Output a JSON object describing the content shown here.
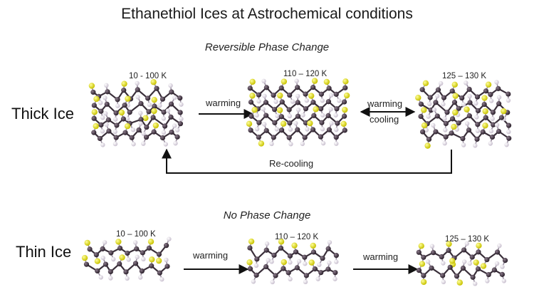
{
  "title": "Ethanethiol Ices at Astrochemical conditions",
  "thick": {
    "subtitle": "Reversible Phase Change",
    "label": "Thick Ice",
    "temps": [
      "10 - 100 K",
      "110 – 120 K",
      "125 – 130 K"
    ],
    "arrow1_label": "warming",
    "arrow2_top": "warming",
    "arrow2_bottom": "cooling",
    "recooling_label": "Re-cooling"
  },
  "thin": {
    "subtitle": "No Phase Change",
    "label": "Thin Ice",
    "temps": [
      "10 – 100 K",
      "110 – 120 K",
      "125 – 130 K"
    ],
    "arrow1_label": "warming",
    "arrow2_label": "warming"
  },
  "colors": {
    "carbon": "#3a2f3a",
    "hydrogen": "#f2eef4",
    "sulfur": "#e6e61e",
    "arrow": "#111111"
  }
}
